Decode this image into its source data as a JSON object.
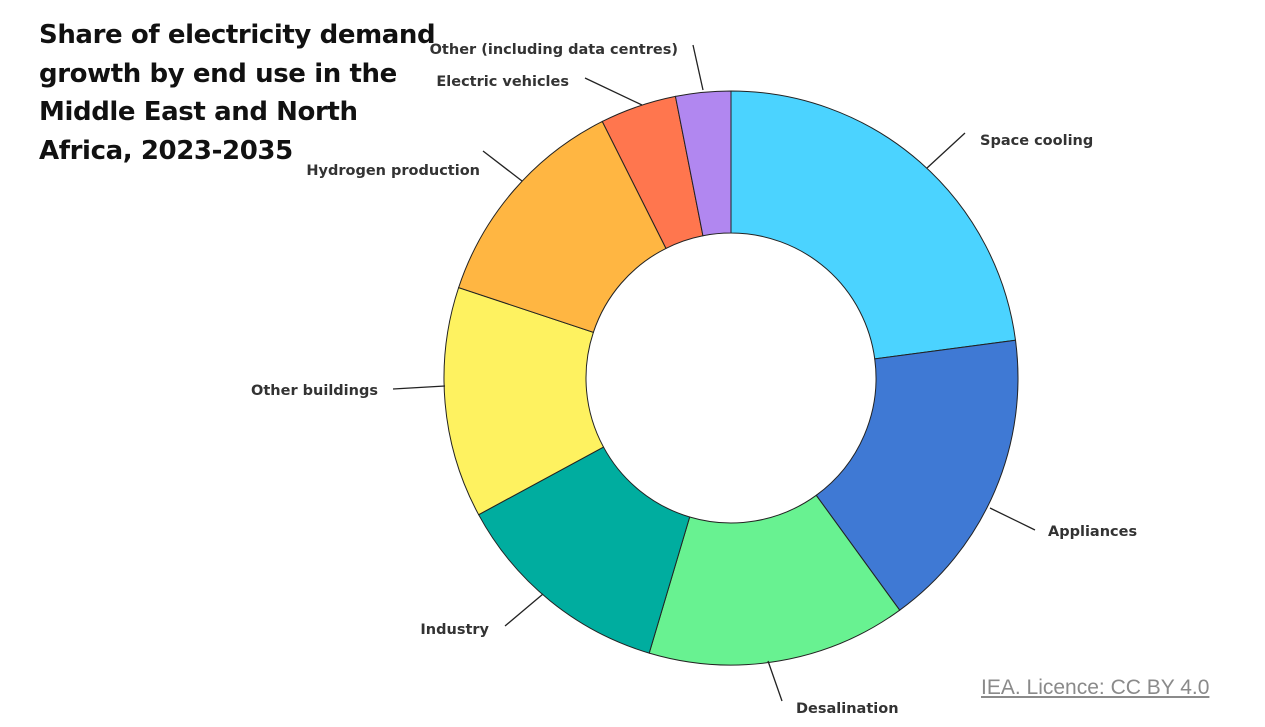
{
  "chart_data": {
    "type": "pie",
    "donut": true,
    "title": "Share of electricity demand growth by end use in the Middle East and North Africa, 2023-2035",
    "unit": "%",
    "legend": "none",
    "slices": [
      {
        "label": "Space cooling",
        "value": 22.9,
        "color": "#4BD3FF"
      },
      {
        "label": "Appliances",
        "value": 17.1,
        "color": "#3F79D4"
      },
      {
        "label": "Desalination",
        "value": 14.6,
        "color": "#68F291"
      },
      {
        "label": "Industry",
        "value": 12.5,
        "color": "#00AD9F"
      },
      {
        "label": "Other buildings",
        "value": 13.0,
        "color": "#FEF260"
      },
      {
        "label": "Hydrogen production",
        "value": 12.5,
        "color": "#FFB642"
      },
      {
        "label": "Electric vehicles",
        "value": 4.3,
        "color": "#FF764E"
      },
      {
        "label": "Other (including data centres)",
        "value": 3.1,
        "color": "#B187F0"
      }
    ]
  },
  "source": {
    "label": "IEA. Licence: CC BY 4.0"
  }
}
